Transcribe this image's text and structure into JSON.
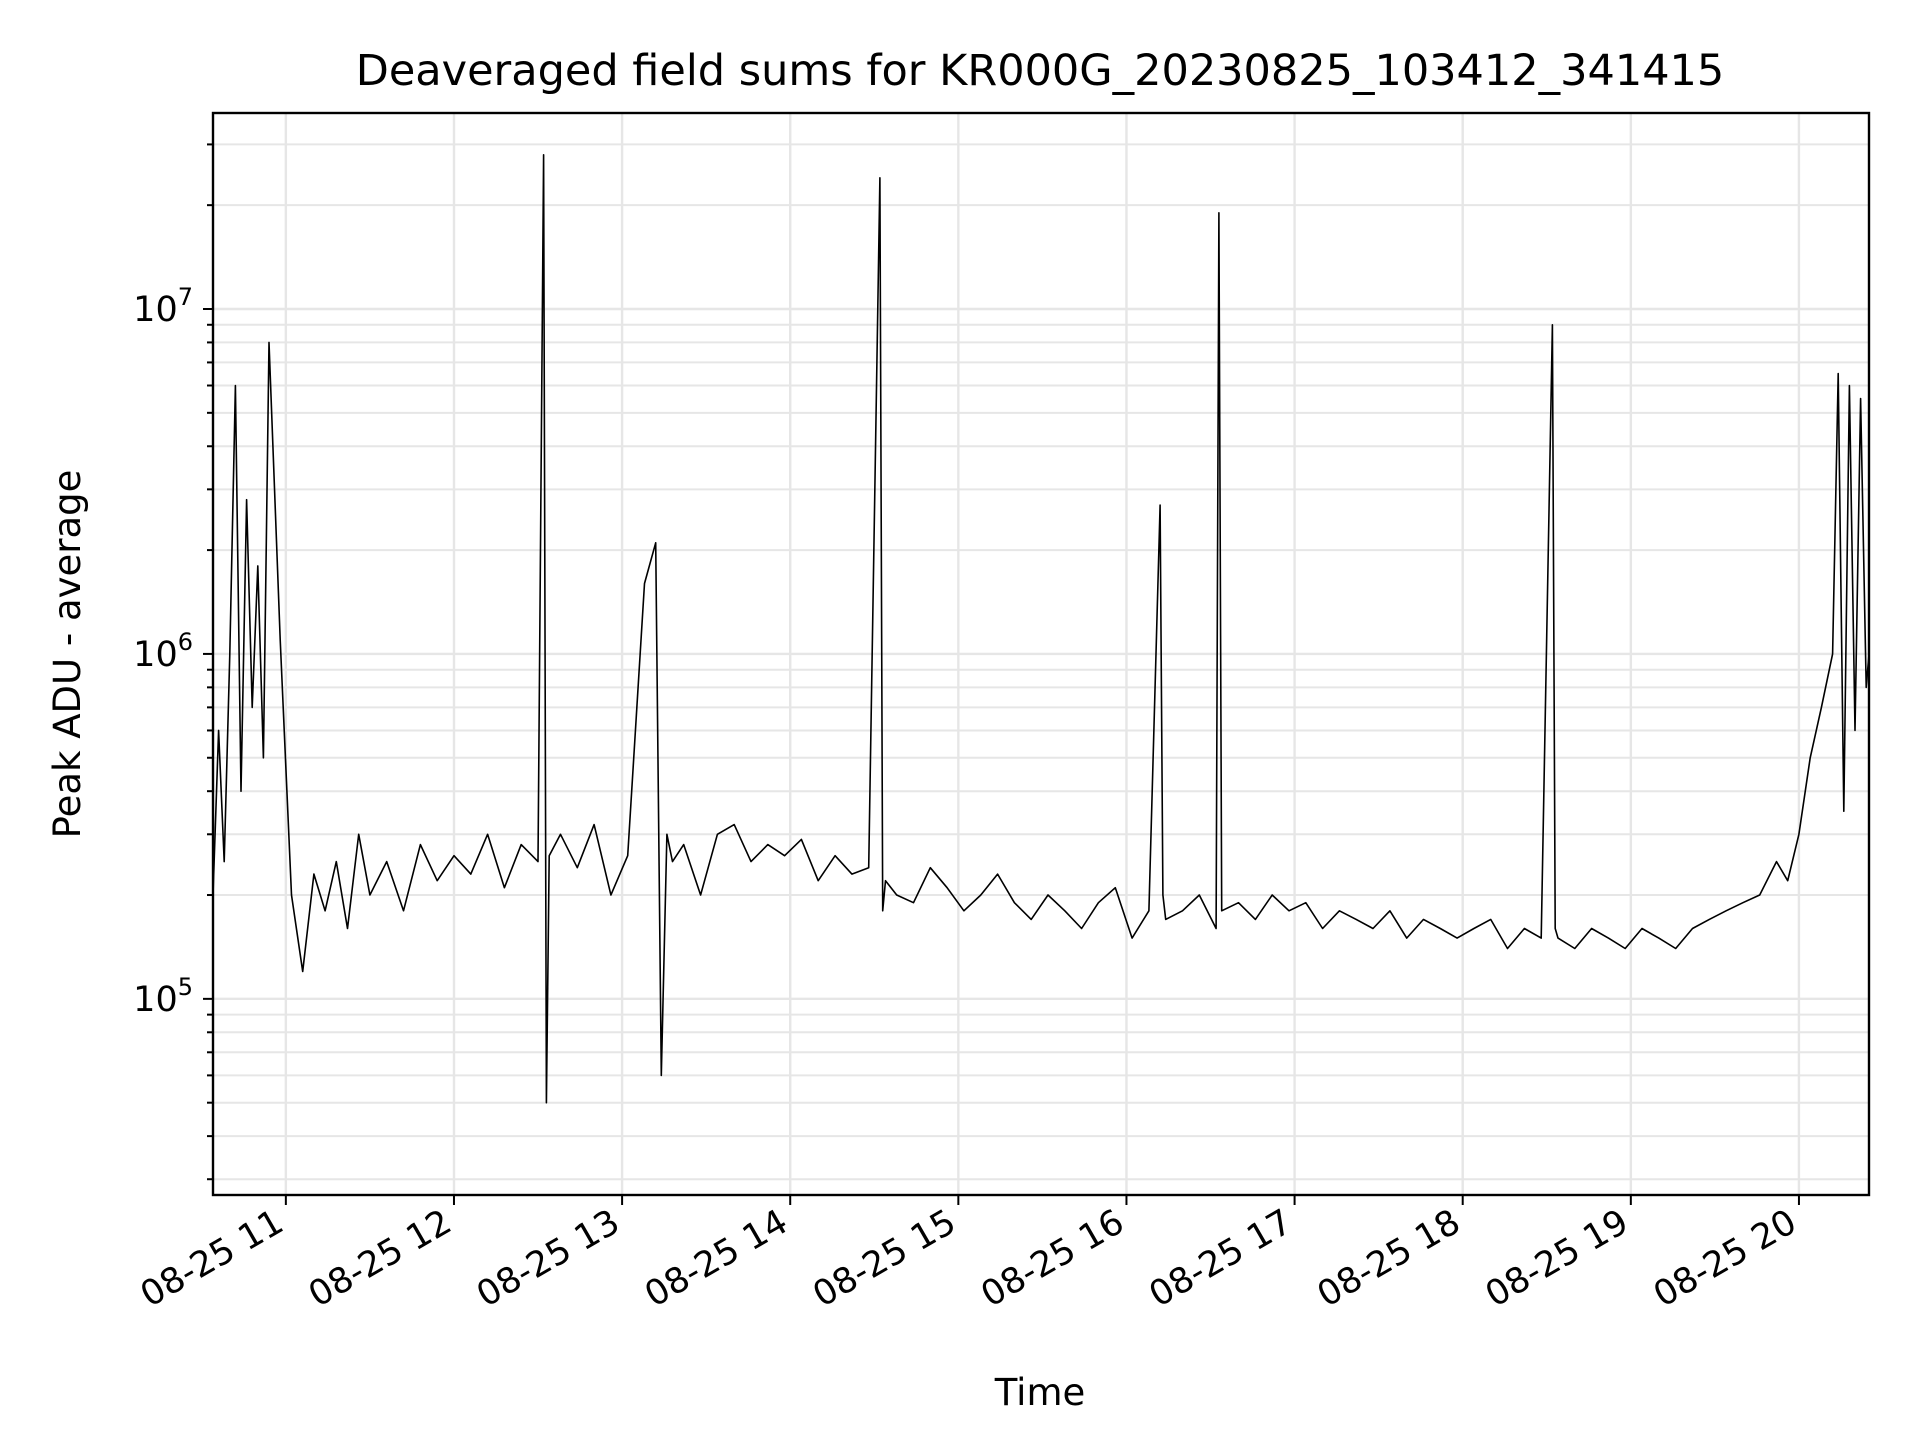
{
  "chart_data": {
    "type": "line",
    "title": "Deaveraged field sums for KR000G_20230825_103412_341415",
    "xlabel": "Time",
    "ylabel": "Peak ADU - average",
    "x_start": "08-25 10:34",
    "x_end": "08-25 20:25",
    "xlim": [
      "08-25 10:34",
      "08-25 20:25"
    ],
    "x_ticks": [
      "08-25 11",
      "08-25 12",
      "08-25 13",
      "08-25 14",
      "08-25 15",
      "08-25 16",
      "08-25 17",
      "08-25 18",
      "08-25 19",
      "08-25 20"
    ],
    "y_scale": "log",
    "ylim": [
      27000,
      37000000
    ],
    "y_ticks": [
      {
        "value": 100000,
        "base": "10",
        "exp": "5"
      },
      {
        "value": 1000000,
        "base": "10",
        "exp": "6"
      },
      {
        "value": 10000000,
        "base": "10",
        "exp": "7"
      }
    ],
    "grid": true,
    "line_color": "#000000",
    "grid_color": "#e6e6e6",
    "series": [
      {
        "x": [
          "10:34",
          "10:36",
          "10:38",
          "10:40",
          "10:42",
          "10:44",
          "10:46",
          "10:48",
          "10:50",
          "10:52",
          "10:54",
          "10:58",
          "11:02",
          "11:06",
          "11:10",
          "11:14",
          "11:18",
          "11:22",
          "11:26",
          "11:30",
          "11:36",
          "11:42",
          "11:48",
          "11:54",
          "12:00",
          "12:06",
          "12:12",
          "12:18",
          "12:24",
          "12:30",
          "12:32",
          "12:33",
          "12:34",
          "12:38",
          "12:44",
          "12:50",
          "12:56",
          "13:02",
          "13:08",
          "13:12",
          "13:14",
          "13:16",
          "13:18",
          "13:22",
          "13:28",
          "13:34",
          "13:40",
          "13:46",
          "13:52",
          "13:58",
          "14:04",
          "14:10",
          "14:16",
          "14:22",
          "14:28",
          "14:32",
          "14:33",
          "14:34",
          "14:38",
          "14:44",
          "14:50",
          "14:56",
          "15:02",
          "15:08",
          "15:14",
          "15:20",
          "15:26",
          "15:32",
          "15:38",
          "15:44",
          "15:50",
          "15:56",
          "16:02",
          "16:08",
          "16:12",
          "16:13",
          "16:14",
          "16:20",
          "16:26",
          "16:32",
          "16:33",
          "16:34",
          "16:40",
          "16:46",
          "16:52",
          "16:58",
          "17:04",
          "17:10",
          "17:16",
          "17:22",
          "17:28",
          "17:34",
          "17:40",
          "17:46",
          "17:52",
          "17:58",
          "18:04",
          "18:10",
          "18:16",
          "18:22",
          "18:28",
          "18:32",
          "18:33",
          "18:34",
          "18:40",
          "18:46",
          "18:52",
          "18:58",
          "19:04",
          "19:10",
          "19:16",
          "19:22",
          "19:28",
          "19:34",
          "19:40",
          "19:46",
          "19:52",
          "19:56",
          "20:00",
          "20:04",
          "20:08",
          "20:12",
          "20:14",
          "20:16",
          "20:18",
          "20:20",
          "20:22",
          "20:24",
          "20:25"
        ],
        "y": [
          200000,
          600000,
          250000,
          1000000,
          6000000,
          400000,
          2800000,
          700000,
          1800000,
          500000,
          8000000,
          1100000,
          200000,
          120000,
          230000,
          180000,
          250000,
          160000,
          300000,
          200000,
          250000,
          180000,
          280000,
          220000,
          260000,
          230000,
          300000,
          210000,
          280000,
          250000,
          28000000,
          50000,
          260000,
          300000,
          240000,
          320000,
          200000,
          260000,
          1600000,
          2100000,
          60000,
          300000,
          250000,
          280000,
          200000,
          300000,
          320000,
          250000,
          280000,
          260000,
          290000,
          220000,
          260000,
          230000,
          240000,
          24000000,
          180000,
          220000,
          200000,
          190000,
          240000,
          210000,
          180000,
          200000,
          230000,
          190000,
          170000,
          200000,
          180000,
          160000,
          190000,
          210000,
          150000,
          180000,
          2700000,
          200000,
          170000,
          180000,
          200000,
          160000,
          19000000,
          180000,
          190000,
          170000,
          200000,
          180000,
          190000,
          160000,
          180000,
          170000,
          160000,
          180000,
          150000,
          170000,
          160000,
          150000,
          160000,
          170000,
          140000,
          160000,
          150000,
          9000000,
          160000,
          150000,
          140000,
          160000,
          150000,
          140000,
          160000,
          150000,
          140000,
          160000,
          170000,
          180000,
          190000,
          200000,
          250000,
          220000,
          300000,
          500000,
          700000,
          1000000,
          6500000,
          350000,
          6000000,
          600000,
          5500000,
          800000,
          1000000
        ]
      }
    ]
  }
}
